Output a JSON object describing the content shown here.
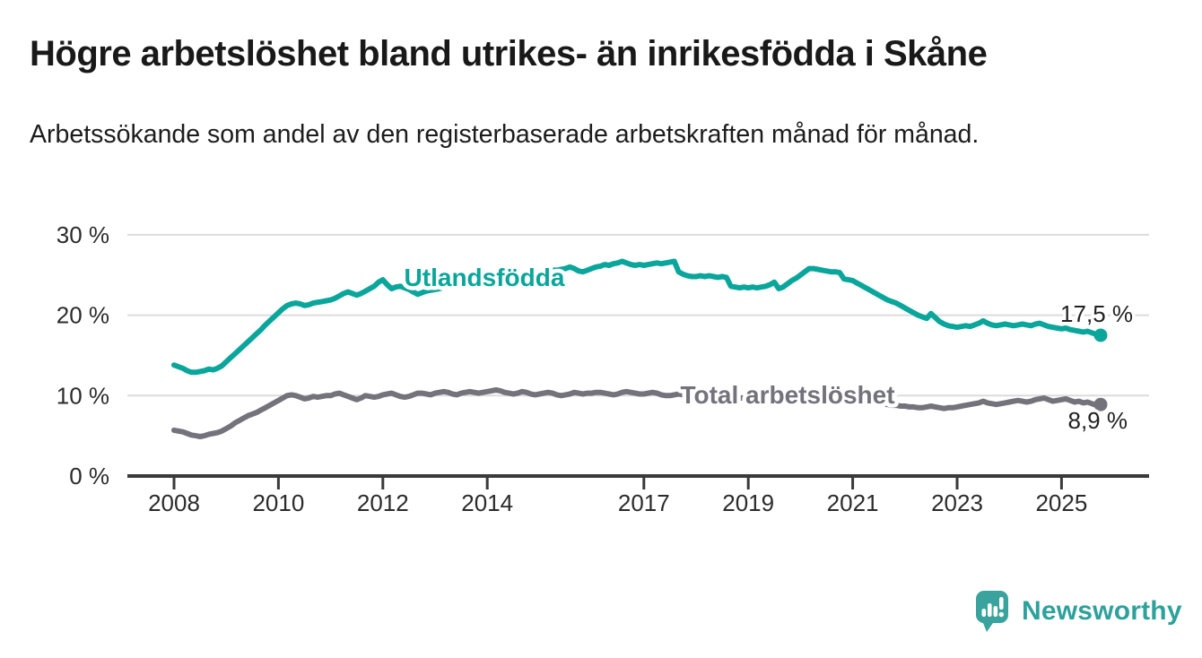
{
  "header": {
    "title": "Högre arbetslöshet bland utrikes- än inrikesfödda i Skåne",
    "subtitle": "Arbetssökande som andel av den registerbaserade arbetskraften månad för månad."
  },
  "footer": {
    "brand": "Newsworthy"
  },
  "colors": {
    "teal_accent": "#0ba69b",
    "gray_series": "#74727b",
    "logo_teal": "#3aa39d",
    "text_dark": "#191919",
    "axis_text": "#2b2b2b",
    "gridline": "#dcdcdc",
    "axis_line": "#3a3a3a"
  },
  "chart_data": {
    "type": "line",
    "title": "Högre arbetslöshet bland utrikes- än inrikesfödda i Skåne",
    "subtitle": "Arbetssökande som andel av den registerbaserade arbetskraften månad för månad.",
    "unit": "%",
    "frequency": "monthly",
    "x_start": {
      "year": 2008,
      "month": 1
    },
    "x_end": {
      "year": 2025,
      "month": 10
    },
    "ylim": [
      0,
      30
    ],
    "grid": "horizontal",
    "legend_position": "inline-labels",
    "y_ticks": [
      {
        "value": 0,
        "label": "0 %"
      },
      {
        "value": 10,
        "label": "10 %"
      },
      {
        "value": 20,
        "label": "20 %"
      },
      {
        "value": 30,
        "label": "30 %"
      }
    ],
    "x_ticks": [
      {
        "year": 2008,
        "label": "2008"
      },
      {
        "year": 2010,
        "label": "2010"
      },
      {
        "year": 2012,
        "label": "2012"
      },
      {
        "year": 2014,
        "label": "2014"
      },
      {
        "year": 2017,
        "label": "2017"
      },
      {
        "year": 2019,
        "label": "2019"
      },
      {
        "year": 2021,
        "label": "2021"
      },
      {
        "year": 2023,
        "label": "2023"
      },
      {
        "year": 2025,
        "label": "2025"
      }
    ],
    "series": [
      {
        "name": "Utlandsfödda",
        "color": "#0ba69b",
        "end_value": 17.5,
        "end_label": "17,5 %",
        "values": [
          13.8,
          13.6,
          13.4,
          13.1,
          12.9,
          12.9,
          13.0,
          13.1,
          13.3,
          13.2,
          13.4,
          13.7,
          14.2,
          14.7,
          15.2,
          15.7,
          16.2,
          16.7,
          17.2,
          17.7,
          18.2,
          18.8,
          19.3,
          19.8,
          20.3,
          20.8,
          21.2,
          21.4,
          21.5,
          21.4,
          21.2,
          21.3,
          21.5,
          21.6,
          21.7,
          21.8,
          21.9,
          22.1,
          22.4,
          22.7,
          22.9,
          22.7,
          22.5,
          22.7,
          23.0,
          23.3,
          23.6,
          24.1,
          24.4,
          23.8,
          23.3,
          23.5,
          23.6,
          23.4,
          23.2,
          22.9,
          22.6,
          22.8,
          23.0,
          23.1,
          23.2,
          23.3,
          23.5,
          23.6,
          23.8,
          23.9,
          24.0,
          24.1,
          24.2,
          24.3,
          24.4,
          24.5,
          24.5,
          24.6,
          24.6,
          24.7,
          24.8,
          24.8,
          24.9,
          25.0,
          25.1,
          25.2,
          25.3,
          25.4,
          25.4,
          25.5,
          25.5,
          25.6,
          25.6,
          25.7,
          25.8,
          26.0,
          25.8,
          25.5,
          25.4,
          25.6,
          25.8,
          26.0,
          26.1,
          26.3,
          26.2,
          26.4,
          26.5,
          26.7,
          26.5,
          26.3,
          26.2,
          26.3,
          26.2,
          26.3,
          26.4,
          26.5,
          26.4,
          26.5,
          26.6,
          26.7,
          25.4,
          25.1,
          24.9,
          24.8,
          24.8,
          24.9,
          24.8,
          24.9,
          24.8,
          24.7,
          24.8,
          24.7,
          23.6,
          23.5,
          23.4,
          23.5,
          23.4,
          23.5,
          23.4,
          23.5,
          23.6,
          23.8,
          24.1,
          23.3,
          23.5,
          23.9,
          24.3,
          24.6,
          25.0,
          25.4,
          25.8,
          25.8,
          25.7,
          25.6,
          25.5,
          25.4,
          25.4,
          25.3,
          24.5,
          24.4,
          24.3,
          24.0,
          23.7,
          23.4,
          23.1,
          22.8,
          22.5,
          22.2,
          21.9,
          21.7,
          21.5,
          21.2,
          20.9,
          20.6,
          20.3,
          20.0,
          19.8,
          19.6,
          20.2,
          19.7,
          19.2,
          18.9,
          18.7,
          18.6,
          18.5,
          18.6,
          18.7,
          18.6,
          18.8,
          19.0,
          19.3,
          19.0,
          18.8,
          18.7,
          18.8,
          18.9,
          18.8,
          18.7,
          18.8,
          18.9,
          18.8,
          18.7,
          18.9,
          19.0,
          18.8,
          18.6,
          18.5,
          18.4,
          18.3,
          18.4,
          18.2,
          18.1,
          18.0,
          17.9,
          18.0,
          17.8,
          17.6,
          17.5
        ]
      },
      {
        "name": "Total arbetslöshet",
        "color": "#74727b",
        "end_value": 8.9,
        "end_label": "8,9 %",
        "values": [
          5.7,
          5.6,
          5.5,
          5.3,
          5.1,
          5.0,
          4.9,
          5.0,
          5.2,
          5.3,
          5.4,
          5.6,
          5.9,
          6.2,
          6.6,
          6.9,
          7.2,
          7.5,
          7.7,
          7.9,
          8.2,
          8.5,
          8.8,
          9.1,
          9.4,
          9.7,
          10.0,
          10.1,
          10.0,
          9.8,
          9.6,
          9.7,
          9.9,
          9.8,
          9.9,
          10.0,
          10.0,
          10.2,
          10.3,
          10.1,
          9.9,
          9.7,
          9.5,
          9.7,
          10.0,
          9.9,
          9.8,
          9.9,
          10.1,
          10.2,
          10.3,
          10.1,
          9.9,
          9.8,
          9.9,
          10.1,
          10.3,
          10.3,
          10.2,
          10.1,
          10.3,
          10.4,
          10.5,
          10.4,
          10.2,
          10.1,
          10.3,
          10.4,
          10.5,
          10.4,
          10.3,
          10.4,
          10.5,
          10.6,
          10.7,
          10.6,
          10.4,
          10.3,
          10.2,
          10.3,
          10.5,
          10.4,
          10.2,
          10.1,
          10.2,
          10.3,
          10.4,
          10.3,
          10.1,
          10.0,
          10.1,
          10.2,
          10.4,
          10.3,
          10.2,
          10.3,
          10.3,
          10.4,
          10.4,
          10.3,
          10.2,
          10.1,
          10.2,
          10.4,
          10.5,
          10.4,
          10.3,
          10.2,
          10.2,
          10.3,
          10.4,
          10.3,
          10.1,
          10.0,
          10.0,
          10.1,
          10.2,
          10.1,
          10.0,
          10.0,
          10.0,
          10.1,
          10.1,
          10.0,
          9.8,
          9.7,
          9.7,
          9.8,
          9.9,
          9.8,
          9.7,
          9.7,
          9.8,
          9.8,
          9.9,
          9.9,
          9.8,
          9.7,
          9.8,
          9.9,
          10.0,
          9.9,
          9.9,
          10.0,
          10.1,
          10.2,
          10.4,
          10.6,
          10.6,
          10.5,
          10.5,
          10.4,
          10.4,
          10.3,
          10.2,
          10.1,
          10.0,
          9.9,
          9.7,
          9.6,
          9.4,
          9.3,
          9.1,
          9.0,
          8.9,
          8.8,
          8.8,
          8.7,
          8.7,
          8.6,
          8.6,
          8.5,
          8.5,
          8.6,
          8.7,
          8.6,
          8.5,
          8.4,
          8.5,
          8.5,
          8.6,
          8.7,
          8.8,
          8.9,
          9.0,
          9.1,
          9.3,
          9.1,
          9.0,
          8.9,
          9.0,
          9.1,
          9.2,
          9.3,
          9.4,
          9.3,
          9.2,
          9.3,
          9.5,
          9.6,
          9.7,
          9.5,
          9.3,
          9.4,
          9.5,
          9.6,
          9.4,
          9.2,
          9.3,
          9.1,
          9.2,
          9.0,
          8.8,
          8.9
        ]
      }
    ]
  }
}
